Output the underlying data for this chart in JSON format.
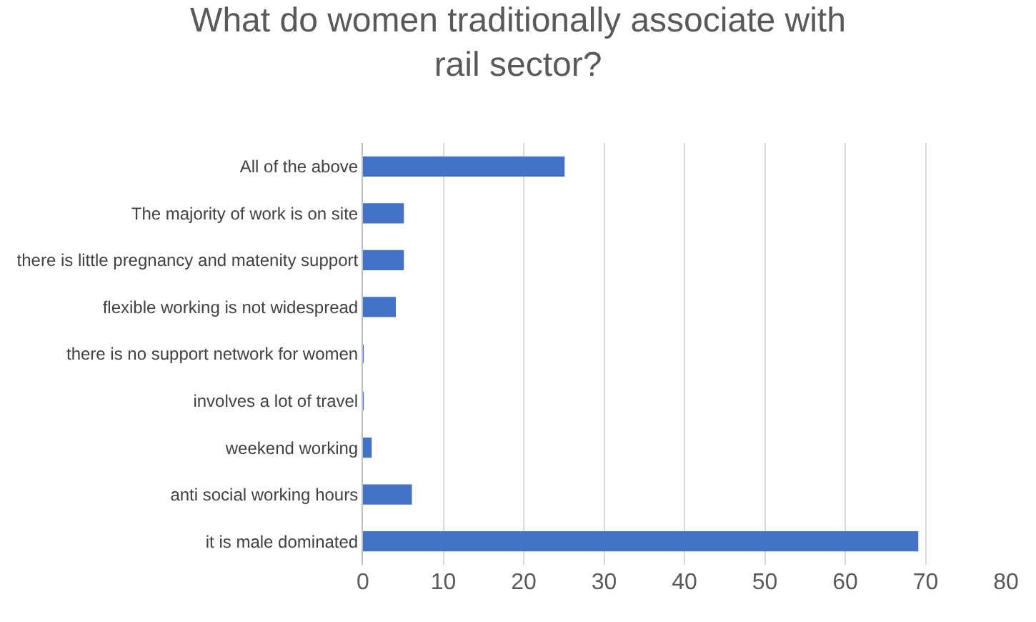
{
  "chart_data": {
    "type": "bar",
    "orientation": "horizontal",
    "title": "What do women traditionally associate with\nrail sector?",
    "categories": [
      "All of the above",
      "The majority of work is on site",
      "there is little pregnancy and matenity support",
      "flexible working is not widespread",
      "there is no support network for women",
      "involves a lot of travel",
      "weekend working",
      "anti social working hours",
      "it is male dominated"
    ],
    "values": [
      25,
      5,
      5,
      4,
      0,
      0,
      1,
      6,
      69
    ],
    "color": "#4472c4",
    "xlim": [
      0,
      80
    ],
    "xticks": [
      0,
      10,
      20,
      30,
      40,
      50,
      60,
      70,
      80
    ],
    "grid": "x",
    "legend": false
  }
}
